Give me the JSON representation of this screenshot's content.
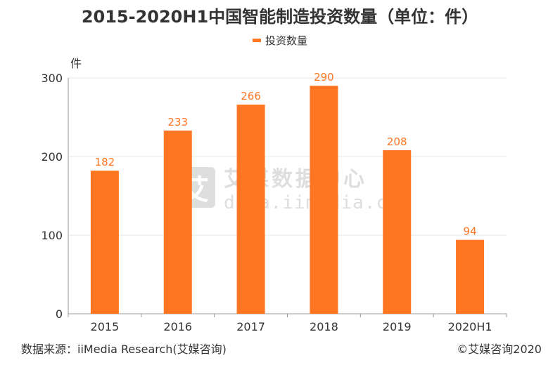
{
  "title": "2015-2020H1中国智能制造投资数量（单位：件）",
  "unit_label": "件",
  "footer": {
    "source": "数据来源：iiMedia Research(艾媒咨询)",
    "copyright": "©艾媒咨询2020"
  },
  "watermark": {
    "logo_text": "艾",
    "name": "艾媒数据中心",
    "url": "data.iimedia.cn"
  },
  "colors": {
    "bar": "#ff7521",
    "label": "#ff7521",
    "grid": "#e6e6e6"
  },
  "chart_data": {
    "type": "bar",
    "title": "2015-2020H1中国智能制造投资数量（单位：件）",
    "categories": [
      "2015",
      "2016",
      "2017",
      "2018",
      "2019",
      "2020H1"
    ],
    "series": [
      {
        "name": "投资数量",
        "values": [
          182,
          233,
          266,
          290,
          208,
          94
        ]
      }
    ],
    "ylabel": "件",
    "ylim": [
      0,
      300
    ],
    "yticks": [
      0,
      100,
      200,
      300
    ],
    "grid": true,
    "legend": "top-center",
    "data_labels": true
  }
}
